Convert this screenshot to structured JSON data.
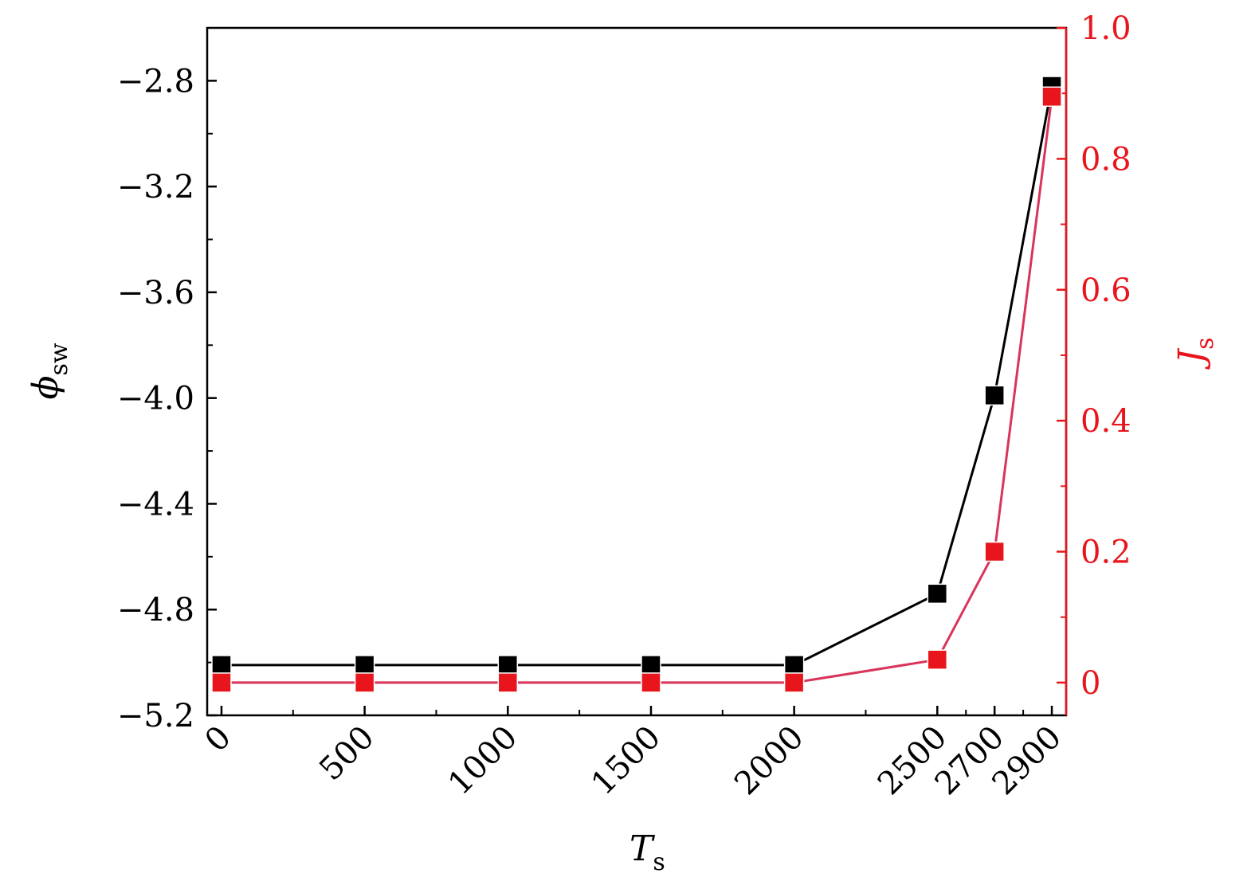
{
  "chart_data": {
    "type": "line",
    "x_axis": {
      "label": "T",
      "label_subscript": "s",
      "ticks": [
        0,
        500,
        1000,
        1500,
        2000,
        2500,
        2700,
        2900
      ],
      "tick_labels": [
        "0",
        "500",
        "1000",
        "1500",
        "2000",
        "2500",
        "2700",
        "2900"
      ],
      "range": [
        -50,
        2950
      ]
    },
    "y_axis_left": {
      "label": "ϕ",
      "label_subscript": "sw",
      "range": [
        -5.2,
        -2.6
      ],
      "ticks": [
        -5.2,
        -4.8,
        -4.4,
        -4.0,
        -3.6,
        -3.2,
        -2.8
      ],
      "tick_labels": [
        "−5.2",
        "−4.8",
        "−4.4",
        "−4.0",
        "−3.6",
        "−3.2",
        "−2.8"
      ],
      "color": "#000000"
    },
    "y_axis_right": {
      "label": "J",
      "label_subscript": "s",
      "range": [
        -0.05,
        1.0
      ],
      "ticks": [
        0,
        0.2,
        0.4,
        0.6,
        0.8,
        1.0
      ],
      "tick_labels": [
        "0",
        "0.2",
        "0.4",
        "0.6",
        "0.8",
        "1.0"
      ],
      "color": "#e8161c"
    },
    "series": [
      {
        "axis": "left",
        "x": [
          0,
          500,
          1000,
          1500,
          2000,
          2500,
          2700,
          2900
        ],
        "y": [
          -5.01,
          -5.01,
          -5.01,
          -5.01,
          -5.01,
          -4.74,
          -3.99,
          -2.82
        ],
        "marker_color": "#000000",
        "line_color": "#000000"
      },
      {
        "axis": "right",
        "x": [
          0,
          500,
          1000,
          1500,
          2000,
          2500,
          2700,
          2900
        ],
        "y": [
          0.0,
          0.0,
          0.0,
          0.0,
          0.0,
          0.035,
          0.2,
          0.895
        ],
        "marker_color": "#e8161c",
        "line_color": "#d9345a"
      }
    ],
    "grid": false,
    "legend": "none"
  }
}
